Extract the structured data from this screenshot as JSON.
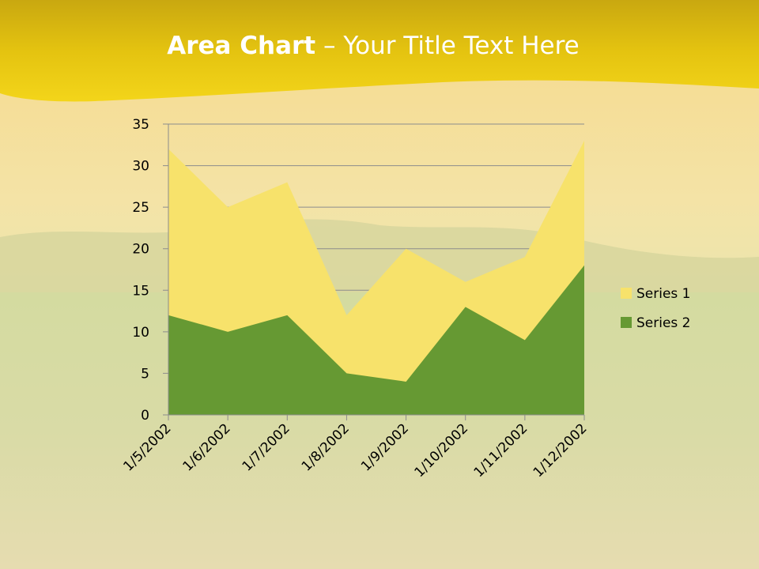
{
  "slide": {
    "title_bold": "Area Chart",
    "title_rest": " – Your Title Text Here"
  },
  "colors": {
    "series1": "#f7e26b",
    "series2": "#669933",
    "banner": "#f0d010",
    "gridline": "#8c8c8c"
  },
  "chart_data": {
    "type": "area",
    "categories": [
      "1/5/2002",
      "1/6/2002",
      "1/7/2002",
      "1/8/2002",
      "1/9/2002",
      "1/10/2002",
      "1/11/2002",
      "1/12/2002"
    ],
    "series": [
      {
        "name": "Series 1",
        "values": [
          32,
          25,
          28,
          12,
          20,
          16,
          19,
          33
        ]
      },
      {
        "name": "Series 2",
        "values": [
          12,
          10,
          12,
          5,
          4,
          13,
          9,
          18
        ]
      }
    ],
    "ylim": [
      0,
      35
    ],
    "yticks": [
      0,
      5,
      10,
      15,
      20,
      25,
      30,
      35
    ],
    "grid": true,
    "legend_position": "right"
  }
}
